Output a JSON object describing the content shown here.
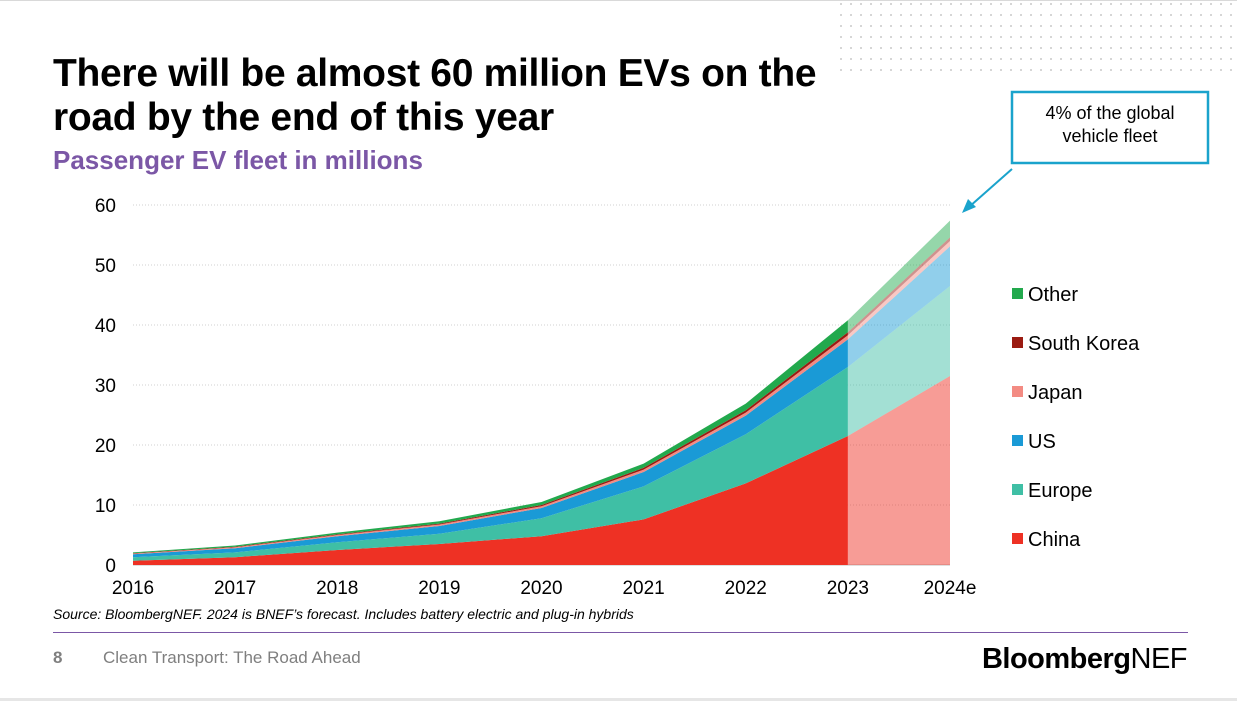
{
  "title": "There will be almost 60 million EVs on the road by the end of this year",
  "subtitle": "Passenger EV fleet in millions",
  "source": "Source: BloombergNEF. 2024 is BNEF’s forecast. Includes battery electric and plug-in hybrids",
  "footer": {
    "page_number": "8",
    "text": "Clean Transport: The Road Ahead",
    "logo_bold": "Bloomberg",
    "logo_regular": "NEF"
  },
  "colors": {
    "title_accent": "#7b57a6",
    "China": "#ee3124",
    "Europe": "#3fbfa5",
    "US": "#1a9ad6",
    "Japan": "#f38b83",
    "South Korea": "#9b1b12",
    "Other": "#22a94d"
  },
  "chart_data": {
    "type": "area",
    "stacked": true,
    "title": "Passenger EV fleet in millions",
    "xlabel": "",
    "ylabel": "",
    "categories": [
      "2016",
      "2017",
      "2018",
      "2019",
      "2020",
      "2021",
      "2022",
      "2023",
      "2024e"
    ],
    "forecast_from_index": 7,
    "ylim": [
      0,
      60
    ],
    "yticks": [
      0,
      10,
      20,
      30,
      40,
      50,
      60
    ],
    "grid": true,
    "legend_position": "right",
    "series": [
      {
        "name": "China",
        "values": [
          0.7,
          1.3,
          2.5,
          3.5,
          4.8,
          7.6,
          13.6,
          21.5,
          31.5
        ]
      },
      {
        "name": "Europe",
        "values": [
          0.6,
          0.8,
          1.3,
          1.7,
          3.0,
          5.5,
          8.2,
          11.5,
          15.0
        ]
      },
      {
        "name": "US",
        "values": [
          0.5,
          0.7,
          1.0,
          1.3,
          1.7,
          2.4,
          3.1,
          4.6,
          6.6
        ]
      },
      {
        "name": "Japan",
        "values": [
          0.1,
          0.15,
          0.2,
          0.25,
          0.3,
          0.4,
          0.5,
          0.7,
          0.9
        ]
      },
      {
        "name": "South Korea",
        "values": [
          0.05,
          0.1,
          0.1,
          0.15,
          0.2,
          0.3,
          0.4,
          0.5,
          0.6
        ]
      },
      {
        "name": "Other",
        "values": [
          0.15,
          0.2,
          0.3,
          0.4,
          0.5,
          0.7,
          1.1,
          2.0,
          2.8
        ]
      }
    ],
    "legend_order": [
      "Other",
      "South Korea",
      "Japan",
      "US",
      "Europe",
      "China"
    ],
    "annotation": {
      "lines": [
        "4% of the global",
        "vehicle fleet"
      ],
      "target_index": 8
    }
  }
}
